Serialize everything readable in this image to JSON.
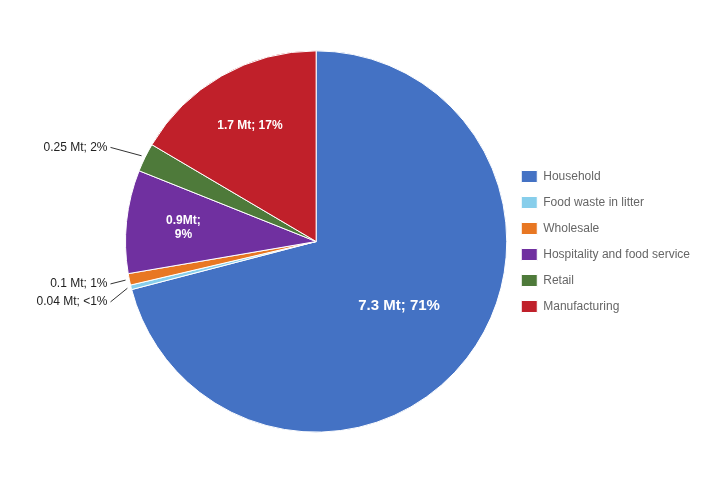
{
  "chart_data": {
    "type": "pie",
    "categories": [
      "Household",
      "Food waste in litter",
      "Wholesale",
      "Hospitality and food\nservice",
      "Retail",
      "Manufacturing"
    ],
    "values": [
      7.3,
      0.04,
      0.1,
      0.9,
      0.25,
      1.7
    ],
    "value_labels": [
      "7.3 Mt; 71%",
      "0.04 Mt; <1%",
      "0.1 Mt; 1%",
      "0.9Mt;\n9%",
      "0.25 Mt; 2%",
      "1.7 Mt; 17%"
    ],
    "colors": [
      "#4472C4",
      "#87CEEB",
      "#E87722",
      "#7030A0",
      "#4E7A3A",
      "#C0202A"
    ],
    "legend": "right",
    "data_labels": true
  }
}
